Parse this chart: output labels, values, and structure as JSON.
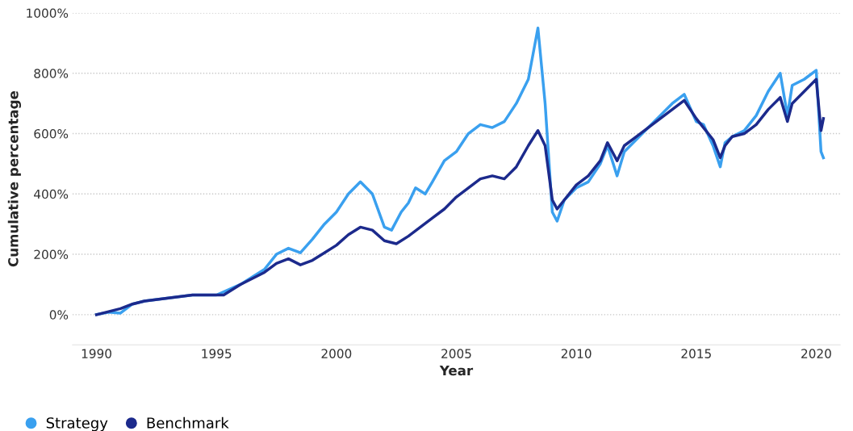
{
  "chart_data": {
    "type": "line",
    "xlabel": "Year",
    "ylabel": "Cumulative percentage",
    "xlim": [
      1989,
      2021
    ],
    "xticks": [
      1990,
      1995,
      2000,
      2005,
      2010,
      2015,
      2020
    ],
    "ylim": [
      -100,
      1000
    ],
    "yticks": [
      {
        "value": 0,
        "label": "0%"
      },
      {
        "value": 200,
        "label": "200%"
      },
      {
        "value": 400,
        "label": "400%"
      },
      {
        "value": 600,
        "label": "600%"
      },
      {
        "value": 800,
        "label": "800%"
      },
      {
        "value": 1000,
        "label": "1000%"
      }
    ],
    "grid": "y",
    "legend": "bottom left",
    "marker": "none",
    "line_style": "solid",
    "series": [
      {
        "name": "Strategy",
        "color": "#3aa0ef",
        "x": [
          1990,
          1990.5,
          1991,
          1991.5,
          1992,
          1993,
          1994,
          1995,
          1996,
          1997,
          1997.5,
          1998,
          1998.5,
          1999,
          1999.5,
          2000,
          2000.5,
          2001,
          2001.5,
          2002,
          2002.3,
          2002.7,
          2003,
          2003.3,
          2003.7,
          2004,
          2004.5,
          2005,
          2005.5,
          2006,
          2006.5,
          2007,
          2007.5,
          2008,
          2008.4,
          2008.7,
          2009,
          2009.2,
          2009.5,
          2010,
          2010.5,
          2011,
          2011.3,
          2011.7,
          2012,
          2012.5,
          2013,
          2013.5,
          2014,
          2014.5,
          2015,
          2015.3,
          2015.7,
          2016,
          2016.2,
          2016.5,
          2017,
          2017.5,
          2018,
          2018.5,
          2018.8,
          2019,
          2019.5,
          2020,
          2020.2,
          2020.3
        ],
        "values": [
          0,
          8,
          5,
          35,
          45,
          55,
          65,
          65,
          100,
          150,
          200,
          220,
          205,
          250,
          300,
          340,
          400,
          440,
          400,
          290,
          280,
          340,
          370,
          420,
          400,
          440,
          510,
          540,
          600,
          630,
          620,
          640,
          700,
          780,
          950,
          700,
          340,
          310,
          380,
          420,
          440,
          500,
          560,
          460,
          540,
          580,
          620,
          660,
          700,
          730,
          640,
          630,
          560,
          490,
          570,
          590,
          610,
          660,
          740,
          800,
          660,
          760,
          780,
          810,
          540,
          520
        ]
      },
      {
        "name": "Benchmark",
        "color": "#1c2a8c",
        "x": [
          1990,
          1990.5,
          1991,
          1991.5,
          1992,
          1993,
          1994,
          1995,
          1995.3,
          1996,
          1997,
          1997.5,
          1998,
          1998.5,
          1999,
          1999.5,
          2000,
          2000.5,
          2001,
          2001.5,
          2002,
          2002.5,
          2003,
          2003.5,
          2004,
          2004.5,
          2005,
          2005.5,
          2006,
          2006.5,
          2007,
          2007.5,
          2008,
          2008.4,
          2008.7,
          2009,
          2009.2,
          2009.5,
          2010,
          2010.5,
          2011,
          2011.3,
          2011.7,
          2012,
          2012.5,
          2013,
          2013.5,
          2014,
          2014.5,
          2015,
          2015.3,
          2015.7,
          2016,
          2016.2,
          2016.5,
          2017,
          2017.5,
          2018,
          2018.5,
          2018.8,
          2019,
          2019.5,
          2020,
          2020.2,
          2020.3
        ],
        "values": [
          0,
          10,
          20,
          35,
          45,
          55,
          65,
          65,
          65,
          100,
          140,
          170,
          185,
          165,
          180,
          205,
          230,
          265,
          290,
          280,
          245,
          235,
          260,
          290,
          320,
          350,
          390,
          420,
          450,
          460,
          450,
          490,
          560,
          610,
          560,
          380,
          350,
          380,
          430,
          460,
          510,
          570,
          510,
          560,
          590,
          620,
          650,
          680,
          710,
          650,
          620,
          580,
          520,
          560,
          590,
          600,
          630,
          680,
          720,
          640,
          700,
          740,
          780,
          610,
          650
        ]
      }
    ]
  }
}
